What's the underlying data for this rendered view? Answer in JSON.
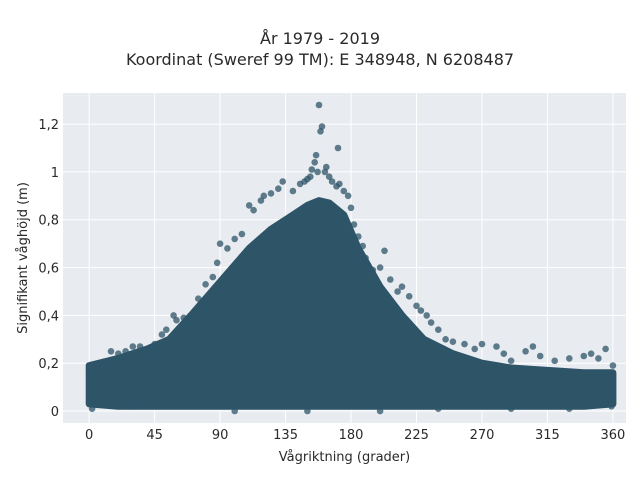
{
  "chart_data": {
    "type": "scatter",
    "title": "År 1979 - 2019",
    "subtitle": "Koordinat (Sweref 99 TM): E 348948, N 6208487",
    "xlabel": "Vågriktning (grader)",
    "ylabel": "Signifikant våghöjd (m)",
    "xlim": [
      -18,
      369
    ],
    "ylim": [
      -0.05,
      1.33
    ],
    "x_ticks": [
      0,
      45,
      90,
      135,
      180,
      225,
      270,
      315,
      360
    ],
    "x_tick_labels": [
      "0",
      "45",
      "90",
      "135",
      "180",
      "225",
      "270",
      "315",
      "360"
    ],
    "y_ticks": [
      0,
      0.2,
      0.4,
      0.6,
      0.8,
      1.0,
      1.2
    ],
    "y_tick_labels": [
      "0",
      "0,2",
      "0,4",
      "0,6",
      "0,8",
      "1",
      "1,2"
    ],
    "grid": true,
    "marker_color": "#2e5468",
    "background": "#e8ebf0",
    "density_envelope": {
      "x": [
        0,
        20,
        40,
        55,
        70,
        90,
        110,
        125,
        140,
        150,
        158,
        165,
        175,
        185,
        200,
        215,
        230,
        250,
        270,
        290,
        315,
        340,
        360
      ],
      "upper": [
        0.19,
        0.22,
        0.26,
        0.3,
        0.4,
        0.54,
        0.68,
        0.76,
        0.82,
        0.86,
        0.88,
        0.87,
        0.82,
        0.68,
        0.52,
        0.4,
        0.3,
        0.24,
        0.2,
        0.18,
        0.17,
        0.16,
        0.16
      ],
      "lower": [
        0.03,
        0.02,
        0.02,
        0.02,
        0.02,
        0.02,
        0.02,
        0.02,
        0.02,
        0.02,
        0.02,
        0.02,
        0.02,
        0.02,
        0.02,
        0.02,
        0.02,
        0.02,
        0.02,
        0.02,
        0.02,
        0.02,
        0.03
      ]
    },
    "points": [
      [
        0,
        0.15
      ],
      [
        2,
        0.18
      ],
      [
        5,
        0.19
      ],
      [
        10,
        0.2
      ],
      [
        15,
        0.25
      ],
      [
        20,
        0.24
      ],
      [
        25,
        0.25
      ],
      [
        30,
        0.27
      ],
      [
        35,
        0.27
      ],
      [
        40,
        0.24
      ],
      [
        45,
        0.28
      ],
      [
        50,
        0.32
      ],
      [
        53,
        0.34
      ],
      [
        58,
        0.4
      ],
      [
        60,
        0.38
      ],
      [
        65,
        0.39
      ],
      [
        70,
        0.4
      ],
      [
        75,
        0.47
      ],
      [
        80,
        0.53
      ],
      [
        85,
        0.56
      ],
      [
        88,
        0.62
      ],
      [
        90,
        0.7
      ],
      [
        95,
        0.68
      ],
      [
        100,
        0.72
      ],
      [
        105,
        0.74
      ],
      [
        110,
        0.86
      ],
      [
        113,
        0.84
      ],
      [
        118,
        0.88
      ],
      [
        120,
        0.9
      ],
      [
        125,
        0.91
      ],
      [
        130,
        0.93
      ],
      [
        133,
        0.96
      ],
      [
        140,
        0.92
      ],
      [
        145,
        0.95
      ],
      [
        148,
        0.96
      ],
      [
        150,
        0.97
      ],
      [
        152,
        0.98
      ],
      [
        153,
        1.01
      ],
      [
        155,
        1.04
      ],
      [
        156,
        1.07
      ],
      [
        157,
        1.0
      ],
      [
        158,
        1.28
      ],
      [
        159,
        1.17
      ],
      [
        160,
        1.19
      ],
      [
        162,
        1.0
      ],
      [
        163,
        1.02
      ],
      [
        165,
        0.98
      ],
      [
        167,
        0.96
      ],
      [
        170,
        0.94
      ],
      [
        171,
        1.1
      ],
      [
        172,
        0.95
      ],
      [
        175,
        0.92
      ],
      [
        178,
        0.9
      ],
      [
        180,
        0.85
      ],
      [
        182,
        0.78
      ],
      [
        185,
        0.73
      ],
      [
        188,
        0.69
      ],
      [
        190,
        0.64
      ],
      [
        195,
        0.59
      ],
      [
        200,
        0.6
      ],
      [
        203,
        0.67
      ],
      [
        207,
        0.55
      ],
      [
        212,
        0.5
      ],
      [
        215,
        0.52
      ],
      [
        220,
        0.48
      ],
      [
        225,
        0.44
      ],
      [
        228,
        0.42
      ],
      [
        232,
        0.4
      ],
      [
        235,
        0.37
      ],
      [
        240,
        0.34
      ],
      [
        245,
        0.3
      ],
      [
        250,
        0.29
      ],
      [
        258,
        0.28
      ],
      [
        265,
        0.26
      ],
      [
        270,
        0.28
      ],
      [
        280,
        0.27
      ],
      [
        285,
        0.24
      ],
      [
        290,
        0.21
      ],
      [
        300,
        0.25
      ],
      [
        305,
        0.27
      ],
      [
        310,
        0.23
      ],
      [
        320,
        0.21
      ],
      [
        330,
        0.22
      ],
      [
        340,
        0.23
      ],
      [
        345,
        0.24
      ],
      [
        350,
        0.22
      ],
      [
        355,
        0.26
      ],
      [
        360,
        0.19
      ],
      [
        2,
        0.01
      ],
      [
        30,
        0.02
      ],
      [
        100,
        0.0
      ],
      [
        150,
        0.0
      ],
      [
        200,
        0.0
      ],
      [
        240,
        0.01
      ],
      [
        290,
        0.01
      ],
      [
        330,
        0.01
      ],
      [
        359,
        0.02
      ]
    ]
  }
}
